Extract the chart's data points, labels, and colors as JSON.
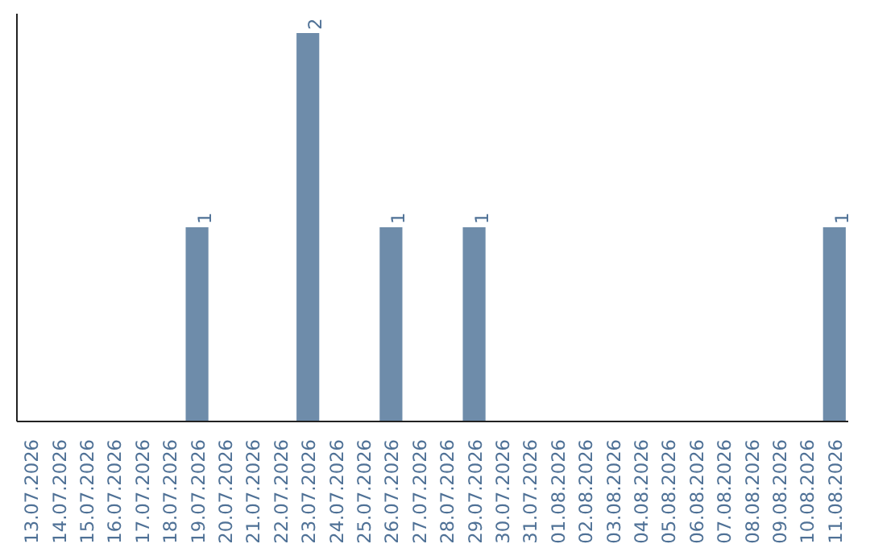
{
  "chart_data": {
    "type": "bar",
    "categories": [
      "13.07.2026",
      "14.07.2026",
      "15.07.2026",
      "16.07.2026",
      "17.07.2026",
      "18.07.2026",
      "19.07.2026",
      "20.07.2026",
      "21.07.2026",
      "22.07.2026",
      "23.07.2026",
      "24.07.2026",
      "25.07.2026",
      "26.07.2026",
      "27.07.2026",
      "28.07.2026",
      "29.07.2026",
      "30.07.2026",
      "31.07.2026",
      "01.08.2026",
      "02.08.2026",
      "03.08.2026",
      "04.08.2026",
      "05.08.2026",
      "06.08.2026",
      "07.08.2026",
      "08.08.2026",
      "09.08.2026",
      "10.08.2026",
      "11.08.2026"
    ],
    "values": [
      0,
      0,
      0,
      0,
      0,
      0,
      1,
      0,
      0,
      0,
      2,
      0,
      0,
      1,
      0,
      0,
      1,
      0,
      0,
      0,
      0,
      0,
      0,
      0,
      0,
      0,
      0,
      0,
      0,
      1
    ],
    "value_labels": [
      null,
      null,
      null,
      null,
      null,
      null,
      "1",
      null,
      null,
      null,
      "2",
      null,
      null,
      "1",
      null,
      null,
      "1",
      null,
      null,
      null,
      null,
      null,
      null,
      null,
      null,
      null,
      null,
      null,
      null,
      "1"
    ],
    "color": "#6e8caa",
    "grid": false,
    "tick_labels": "x"
  }
}
